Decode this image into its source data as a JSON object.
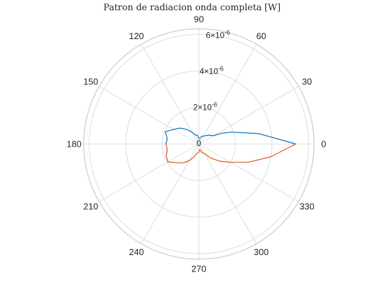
{
  "chart_data": {
    "type": "polar-line",
    "title": "Patron de radiacion onda completa [W]",
    "r_ticks": [
      {
        "value": 0,
        "mantissa": "0",
        "exponent": ""
      },
      {
        "value": 2e-06,
        "mantissa": "2",
        "exponent": "-6"
      },
      {
        "value": 4e-06,
        "mantissa": "4",
        "exponent": "-6"
      },
      {
        "value": 6e-06,
        "mantissa": "6",
        "exponent": "-6"
      }
    ],
    "r_tick_angle_deg": 80,
    "rlim": [
      0,
      6.3e-06
    ],
    "theta_ticks_deg": [
      0,
      30,
      60,
      90,
      120,
      150,
      180,
      210,
      240,
      270,
      300,
      330
    ],
    "theta_tick_labels": [
      "0",
      "30",
      "60",
      "90",
      "120",
      "150",
      "180",
      "210",
      "240",
      "270",
      "300",
      "330"
    ],
    "theta_zero_location": "right",
    "theta_direction": "counterclockwise",
    "grid": true,
    "series": [
      {
        "color": "#0072BD",
        "theta_deg": [
          0,
          10,
          20,
          25,
          30,
          40,
          50,
          60,
          70,
          80,
          90,
          100,
          110,
          120,
          130,
          140,
          150,
          160,
          165,
          170,
          180
        ],
        "r": [
          5.3e-06,
          3.3e-06,
          1.9e-06,
          1.4e-06,
          9e-07,
          7.5e-07,
          6e-07,
          5e-07,
          4.5e-07,
          3e-07,
          3e-07,
          5e-07,
          5e-07,
          7.5e-07,
          1.05e-06,
          1.35e-06,
          1.6e-06,
          1.95e-06,
          1.85e-06,
          1.75e-06,
          1.8e-06
        ]
      },
      {
        "color": "#D95319",
        "theta_deg": [
          180,
          190,
          200,
          210,
          220,
          230,
          240,
          250,
          260,
          270,
          280,
          290,
          300,
          310,
          320,
          330,
          340,
          350,
          360
        ],
        "r": [
          1.8e-06,
          1.75e-06,
          1.9e-06,
          1.95e-06,
          1.6e-06,
          1.35e-06,
          1.05e-06,
          7.5e-07,
          5e-07,
          4.5e-07,
          3e-07,
          5e-07,
          6e-07,
          1e-06,
          1.45e-06,
          2e-06,
          2.9e-06,
          4e-06,
          5.3e-06
        ]
      }
    ]
  }
}
